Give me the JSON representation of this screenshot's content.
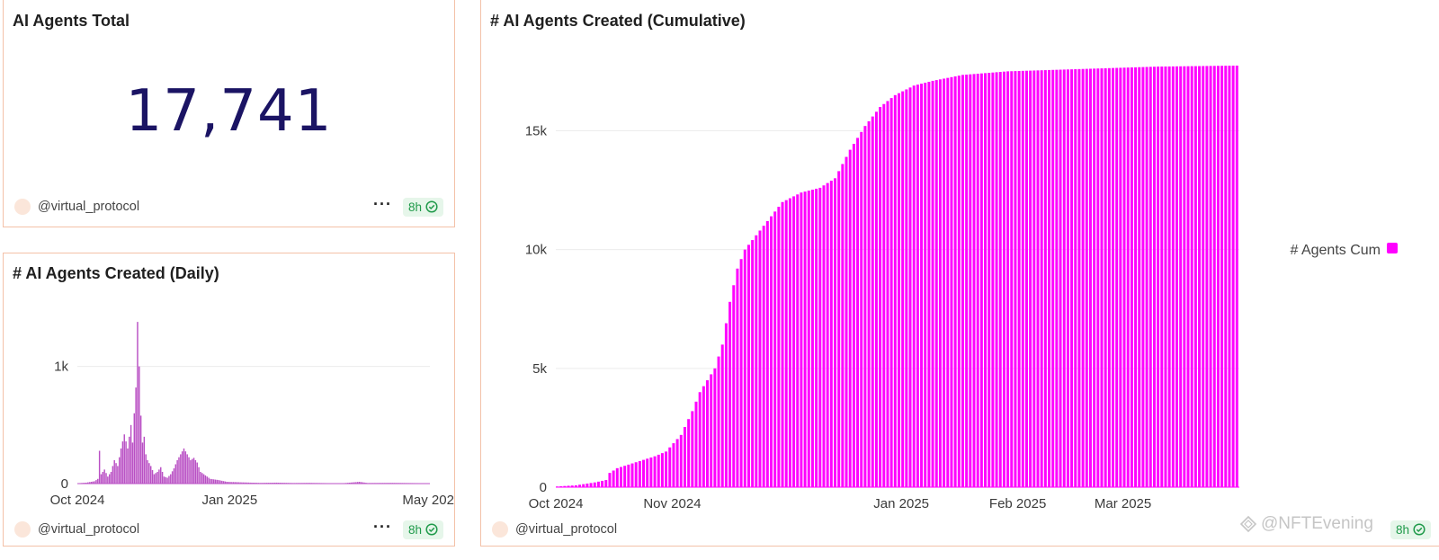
{
  "total_card": {
    "title": "AI Agents Total",
    "value": "17,741",
    "owner": "@virtual_protocol",
    "menu": "···",
    "freshness": "8h"
  },
  "daily_card": {
    "title": "# AI Agents Created (Daily)",
    "owner": "@virtual_protocol",
    "menu": "···",
    "freshness": "8h"
  },
  "cumulative_card": {
    "title": "# AI Agents Created (Cumulative)",
    "owner": "@virtual_protocol",
    "menu": "···",
    "freshness": "8h",
    "legend": "# Agents Cum"
  },
  "watermark": "@NFTEvening",
  "colors": {
    "daily_bar": "#b94fc4",
    "cumulative_bar": "#ff00ff",
    "big_number": "#1b1464",
    "card_border": "#f3c1a8"
  },
  "chart_data": [
    {
      "id": "daily",
      "type": "bar",
      "title": "# AI Agents Created (Daily)",
      "x_start": "2024-10-01",
      "x_end": "2025-05-01",
      "x_ticks": [
        {
          "label": "Oct 2024",
          "date": "2024-10-01"
        },
        {
          "label": "Jan 2025",
          "date": "2025-01-01"
        },
        {
          "label": "May 202",
          "date": "2025-05-01"
        }
      ],
      "y_ticks": [
        {
          "label": "0",
          "value": 0
        },
        {
          "label": "1k",
          "value": 1000
        }
      ],
      "ylim": [
        0,
        1450
      ],
      "keypoints": [
        [
          0,
          3
        ],
        [
          5,
          8
        ],
        [
          10,
          20
        ],
        [
          12,
          40
        ],
        [
          13,
          280
        ],
        [
          14,
          80
        ],
        [
          16,
          120
        ],
        [
          18,
          60
        ],
        [
          20,
          100
        ],
        [
          22,
          200
        ],
        [
          24,
          150
        ],
        [
          26,
          300
        ],
        [
          28,
          420
        ],
        [
          30,
          300
        ],
        [
          32,
          500
        ],
        [
          33,
          350
        ],
        [
          34,
          600
        ],
        [
          35,
          820
        ],
        [
          36,
          1380
        ],
        [
          37,
          1000
        ],
        [
          38,
          580
        ],
        [
          39,
          350
        ],
        [
          40,
          400
        ],
        [
          41,
          250
        ],
        [
          42,
          200
        ],
        [
          44,
          150
        ],
        [
          46,
          80
        ],
        [
          48,
          100
        ],
        [
          50,
          140
        ],
        [
          52,
          60
        ],
        [
          54,
          50
        ],
        [
          56,
          80
        ],
        [
          58,
          130
        ],
        [
          60,
          200
        ],
        [
          62,
          250
        ],
        [
          64,
          300
        ],
        [
          66,
          250
        ],
        [
          68,
          200
        ],
        [
          70,
          220
        ],
        [
          72,
          180
        ],
        [
          74,
          100
        ],
        [
          76,
          80
        ],
        [
          78,
          60
        ],
        [
          80,
          40
        ],
        [
          85,
          30
        ],
        [
          90,
          15
        ],
        [
          100,
          10
        ],
        [
          110,
          6
        ],
        [
          120,
          8
        ],
        [
          130,
          5
        ],
        [
          140,
          6
        ],
        [
          150,
          4
        ],
        [
          160,
          3
        ],
        [
          170,
          15
        ],
        [
          175,
          5
        ],
        [
          190,
          6
        ],
        [
          212,
          3
        ]
      ]
    },
    {
      "id": "cumulative",
      "type": "bar",
      "title": "# AI Agents Created (Cumulative)",
      "legend": "# Agents Cum",
      "x_start": "2024-10-01",
      "x_end": "2025-03-31",
      "x_ticks": [
        {
          "label": "Oct 2024",
          "date": "2024-10-01"
        },
        {
          "label": "Nov 2024",
          "date": "2024-11-01"
        },
        {
          "label": "Jan 2025",
          "date": "2025-01-01"
        },
        {
          "label": "Feb 2025",
          "date": "2025-02-01"
        },
        {
          "label": "Mar 2025",
          "date": "2025-03-01"
        }
      ],
      "y_ticks": [
        {
          "label": "0",
          "value": 0
        },
        {
          "label": "5k",
          "value": 5000
        },
        {
          "label": "10k",
          "value": 10000
        },
        {
          "label": "15k",
          "value": 15000
        }
      ],
      "ylim": [
        0,
        17741
      ],
      "keypoints": [
        [
          0,
          30
        ],
        [
          5,
          80
        ],
        [
          10,
          200
        ],
        [
          13,
          300
        ],
        [
          14,
          600
        ],
        [
          16,
          800
        ],
        [
          20,
          1000
        ],
        [
          26,
          1300
        ],
        [
          29,
          1500
        ],
        [
          33,
          2200
        ],
        [
          36,
          3200
        ],
        [
          38,
          4000
        ],
        [
          40,
          4500
        ],
        [
          42,
          5000
        ],
        [
          44,
          6000
        ],
        [
          46,
          7800
        ],
        [
          48,
          9200
        ],
        [
          50,
          10000
        ],
        [
          54,
          10800
        ],
        [
          57,
          11400
        ],
        [
          60,
          12000
        ],
        [
          65,
          12400
        ],
        [
          70,
          12600
        ],
        [
          74,
          13000
        ],
        [
          78,
          14200
        ],
        [
          82,
          15200
        ],
        [
          86,
          16000
        ],
        [
          90,
          16500
        ],
        [
          95,
          16900
        ],
        [
          100,
          17100
        ],
        [
          108,
          17350
        ],
        [
          120,
          17500
        ],
        [
          140,
          17600
        ],
        [
          160,
          17700
        ],
        [
          181,
          17741
        ]
      ]
    }
  ]
}
